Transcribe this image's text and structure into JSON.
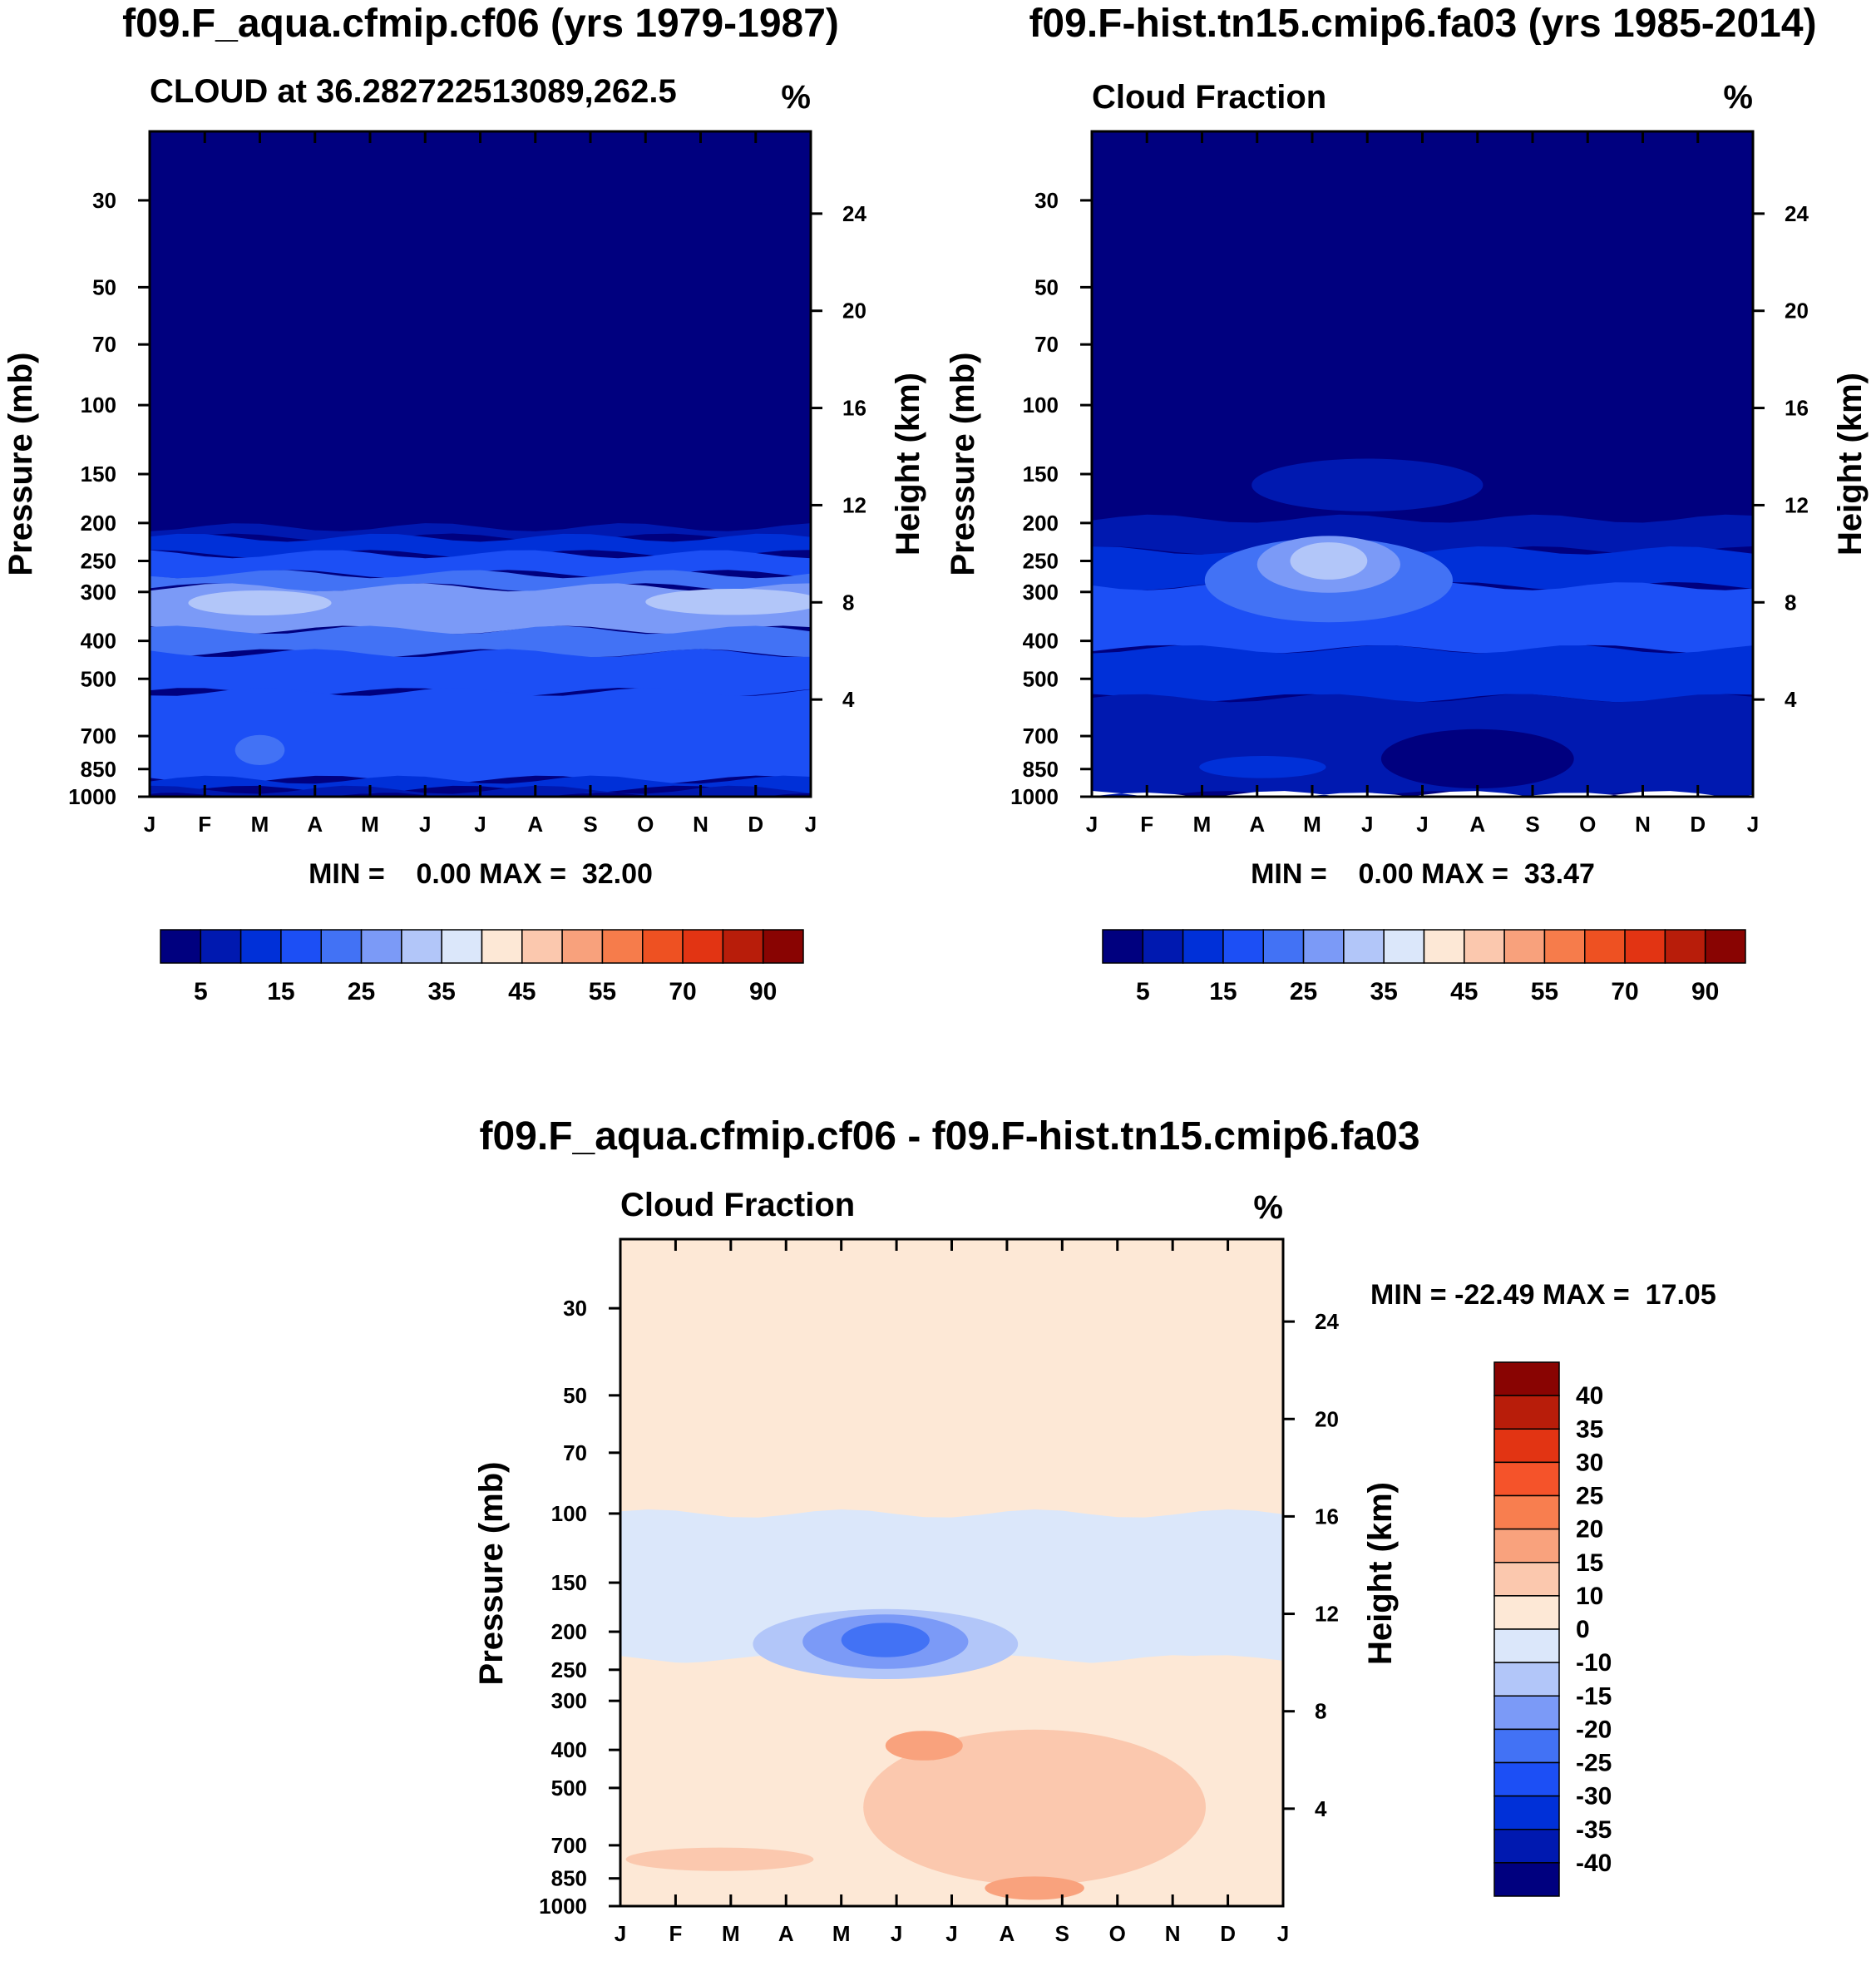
{
  "chart_data": [
    {
      "type": "heatmap",
      "title": "f09.F_aqua.cfmip.cf06 (yrs 1979-1987)",
      "subtitle_left": "CLOUD at 36.282722513089,262.5",
      "subtitle_right": "%",
      "ylabel": "Pressure (mb)",
      "ylabel_right": "Height (km)",
      "x_tick_labels": [
        "J",
        "F",
        "M",
        "A",
        "M",
        "J",
        "J",
        "A",
        "S",
        "O",
        "N",
        "D",
        "J"
      ],
      "y_ticks": [
        30,
        50,
        70,
        100,
        150,
        200,
        250,
        300,
        400,
        500,
        700,
        850,
        1000
      ],
      "y_tick_labels": [
        "30",
        "50",
        "70",
        "100",
        "150",
        "200",
        "250",
        "300",
        "400",
        "500",
        "700",
        "850",
        "1000"
      ],
      "height_ticks": [
        24,
        20,
        16,
        12,
        8,
        4
      ],
      "height_tick_labels": [
        "24",
        "20",
        "16",
        "12",
        "8",
        "4"
      ],
      "ylim": [
        1000,
        20
      ],
      "min_max_text": "MIN =    0.00 MAX =  32.00",
      "colorbar_labels": [
        "5",
        "15",
        "25",
        "35",
        "45",
        "55",
        "70",
        "90"
      ],
      "colorbar_colors": [
        "#00007f",
        "#0019b0",
        "#0030d8",
        "#1c4ff5",
        "#4272f5",
        "#7b9af7",
        "#b2c6f9",
        "#dbe7fa",
        "#fde8d6",
        "#fbc8ae",
        "#f8a17c",
        "#f67c4b",
        "#ee5122",
        "#e23413",
        "#b81d0a",
        "#890402"
      ],
      "levels": [
        {
          "from": 30,
          "to": 205,
          "color": "#00007f"
        },
        {
          "from": 205,
          "to": 218,
          "color": "#0019b0"
        },
        {
          "from": 218,
          "to": 240,
          "color": "#0030d8"
        },
        {
          "from": 240,
          "to": 270,
          "color": "#1c4ff5"
        },
        {
          "from": 270,
          "to": 292,
          "color": "#4272f5"
        },
        {
          "from": 292,
          "to": 375,
          "color": "#7b9af7"
        },
        {
          "from": 375,
          "to": 430,
          "color": "#4272f5"
        },
        {
          "from": 430,
          "to": 540,
          "color": "#1c4ff5"
        },
        {
          "from": 540,
          "to": 905,
          "color": "#1c4ff5"
        },
        {
          "from": 905,
          "to": 960,
          "color": "#0030d8"
        },
        {
          "from": 960,
          "to": 1000,
          "color": "#0019b0"
        }
      ],
      "blobs": [
        {
          "month": 2.0,
          "p": 320,
          "w_months": 2.6,
          "h_mb": 28,
          "color": "#b2c6f9"
        },
        {
          "month": 10.6,
          "p": 318,
          "w_months": 3.2,
          "h_mb": 30,
          "color": "#b2c6f9"
        },
        {
          "month": 2.0,
          "p": 760,
          "w_months": 0.9,
          "h_mb": 90,
          "color": "#4272f5"
        }
      ]
    },
    {
      "type": "heatmap",
      "title": "f09.F-hist.tn15.cmip6.fa03 (yrs 1985-2014)",
      "subtitle_left": "Cloud Fraction",
      "subtitle_right": "%",
      "ylabel": "Pressure (mb)",
      "ylabel_right": "Height (km)",
      "x_tick_labels": [
        "J",
        "F",
        "M",
        "A",
        "M",
        "J",
        "J",
        "A",
        "S",
        "O",
        "N",
        "D",
        "J"
      ],
      "y_ticks": [
        30,
        50,
        70,
        100,
        150,
        200,
        250,
        300,
        400,
        500,
        700,
        850,
        1000
      ],
      "y_tick_labels": [
        "30",
        "50",
        "70",
        "100",
        "150",
        "200",
        "250",
        "300",
        "400",
        "500",
        "700",
        "850",
        "1000"
      ],
      "height_ticks": [
        24,
        20,
        16,
        12,
        8,
        4
      ],
      "height_tick_labels": [
        "24",
        "20",
        "16",
        "12",
        "8",
        "4"
      ],
      "ylim": [
        1000,
        20
      ],
      "min_max_text": "MIN =    0.00 MAX =  33.47",
      "colorbar_labels": [
        "5",
        "15",
        "25",
        "35",
        "45",
        "55",
        "70",
        "90"
      ],
      "colorbar_colors": [
        "#00007f",
        "#0019b0",
        "#0030d8",
        "#1c4ff5",
        "#4272f5",
        "#7b9af7",
        "#b2c6f9",
        "#dbe7fa",
        "#fde8d6",
        "#fbc8ae",
        "#f8a17c",
        "#f67c4b",
        "#ee5122",
        "#e23413",
        "#b81d0a",
        "#890402"
      ],
      "levels": [
        {
          "from": 30,
          "to": 195,
          "color": "#00007f"
        },
        {
          "from": 195,
          "to": 235,
          "color": "#0019b0"
        },
        {
          "from": 235,
          "to": 290,
          "color": "#0030d8"
        },
        {
          "from": 290,
          "to": 420,
          "color": "#1c4ff5"
        },
        {
          "from": 420,
          "to": 560,
          "color": "#0030d8"
        },
        {
          "from": 560,
          "to": 990,
          "color": "#0019b0"
        },
        {
          "from": 990,
          "to": 1000,
          "color": "#ffffff"
        }
      ],
      "blobs": [
        {
          "month": 5.0,
          "p": 160,
          "w_months": 4.2,
          "h_mb": 40,
          "color": "#0019b0"
        },
        {
          "month": 4.3,
          "p": 280,
          "w_months": 4.5,
          "h_mb": 120,
          "color": "#4272f5"
        },
        {
          "month": 4.3,
          "p": 255,
          "w_months": 2.6,
          "h_mb": 70,
          "color": "#7b9af7"
        },
        {
          "month": 4.3,
          "p": 250,
          "w_months": 1.4,
          "h_mb": 40,
          "color": "#b2c6f9"
        },
        {
          "month": 7.0,
          "p": 800,
          "w_months": 3.5,
          "h_mb": 230,
          "color": "#00007f"
        },
        {
          "month": 3.1,
          "p": 840,
          "w_months": 2.3,
          "h_mb": 60,
          "color": "#0030d8"
        }
      ]
    },
    {
      "type": "heatmap",
      "title": "f09.F_aqua.cfmip.cf06 - f09.F-hist.tn15.cmip6.fa03",
      "subtitle_left": "Cloud Fraction",
      "subtitle_right": "%",
      "ylabel": "Pressure (mb)",
      "ylabel_right": "Height (km)",
      "x_tick_labels": [
        "J",
        "F",
        "M",
        "A",
        "M",
        "J",
        "J",
        "A",
        "S",
        "O",
        "N",
        "D",
        "J"
      ],
      "y_ticks": [
        30,
        50,
        70,
        100,
        150,
        200,
        250,
        300,
        400,
        500,
        700,
        850,
        1000
      ],
      "y_tick_labels": [
        "30",
        "50",
        "70",
        "100",
        "150",
        "200",
        "250",
        "300",
        "400",
        "500",
        "700",
        "850",
        "1000"
      ],
      "height_ticks": [
        24,
        20,
        16,
        12,
        8,
        4
      ],
      "height_tick_labels": [
        "24",
        "20",
        "16",
        "12",
        "8",
        "4"
      ],
      "ylim": [
        1000,
        20
      ],
      "min_max_text": "MIN = -22.49 MAX =  17.05",
      "colorbar_labels": [
        "40",
        "35",
        "30",
        "25",
        "20",
        "15",
        "10",
        "0",
        "-10",
        "-15",
        "-20",
        "-25",
        "-30",
        "-35",
        "-40"
      ],
      "colorbar_colors": [
        "#890402",
        "#b81d0a",
        "#e23413",
        "#f5532a",
        "#f87e4f",
        "#f9a27d",
        "#fbc8ae",
        "#fde8d6",
        "#dbe7fa",
        "#b2c6f9",
        "#7b9af7",
        "#4272f5",
        "#1c4ff5",
        "#0030d8",
        "#0019b0",
        "#00007f"
      ],
      "levels": [
        {
          "from": 30,
          "to": 100,
          "color": "#fde8d6"
        },
        {
          "from": 100,
          "to": 235,
          "color": "#dbe7fa"
        },
        {
          "from": 235,
          "to": 1000,
          "color": "#fde8d6"
        }
      ],
      "blobs": [
        {
          "month": 4.8,
          "p": 215,
          "w_months": 4.8,
          "h_mb": 75,
          "color": "#b2c6f9"
        },
        {
          "month": 4.8,
          "p": 212,
          "w_months": 3.0,
          "h_mb": 55,
          "color": "#7b9af7"
        },
        {
          "month": 4.8,
          "p": 210,
          "w_months": 1.6,
          "h_mb": 30,
          "color": "#4272f5"
        },
        {
          "month": 7.5,
          "p": 560,
          "w_months": 6.2,
          "h_mb": 450,
          "color": "#fbc8ae"
        },
        {
          "month": 5.5,
          "p": 390,
          "w_months": 1.4,
          "h_mb": 45,
          "color": "#f9a27d"
        },
        {
          "month": 7.5,
          "p": 900,
          "w_months": 1.8,
          "h_mb": 70,
          "color": "#f9a27d"
        },
        {
          "month": 1.8,
          "p": 760,
          "w_months": 3.4,
          "h_mb": 60,
          "color": "#fbc8ae"
        }
      ]
    }
  ]
}
